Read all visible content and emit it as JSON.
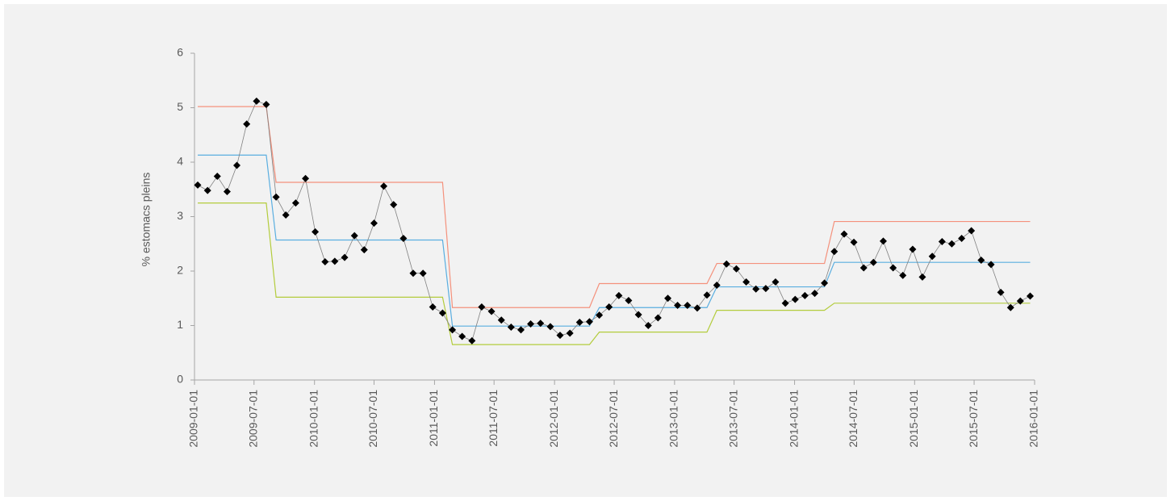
{
  "chart_data": {
    "type": "line",
    "y_label": "% estomacs pleins",
    "x": [
      2009.027,
      2009.109,
      2009.19,
      2009.272,
      2009.353,
      2009.435,
      2009.517,
      2009.598,
      2009.68,
      2009.761,
      2009.843,
      2009.925,
      2010.006,
      2010.088,
      2010.169,
      2010.251,
      2010.333,
      2010.414,
      2010.496,
      2010.577,
      2010.659,
      2010.741,
      2010.822,
      2010.904,
      2010.985,
      2011.067,
      2011.149,
      2011.23,
      2011.312,
      2011.393,
      2011.475,
      2011.557,
      2011.638,
      2011.72,
      2011.801,
      2011.883,
      2011.965,
      2012.046,
      2012.128,
      2012.209,
      2012.291,
      2012.373,
      2012.454,
      2012.536,
      2012.617,
      2012.699,
      2012.781,
      2012.862,
      2012.944,
      2013.025,
      2013.107,
      2013.189,
      2013.27,
      2013.352,
      2013.433,
      2013.515,
      2013.597,
      2013.678,
      2013.76,
      2013.841,
      2013.923,
      2014.005,
      2014.086,
      2014.168,
      2014.249,
      2014.331,
      2014.413,
      2014.494,
      2014.576,
      2014.657,
      2014.739,
      2014.821,
      2014.902,
      2014.984,
      2015.065,
      2015.147,
      2015.229,
      2015.31,
      2015.392,
      2015.473,
      2015.555,
      2015.637,
      2015.718,
      2015.8,
      2015.881,
      2015.963
    ],
    "series": [
      {
        "color": "#f4917c",
        "values": [
          5.02,
          5.02,
          5.02,
          5.02,
          5.02,
          5.02,
          5.02,
          5.02,
          3.63,
          3.63,
          3.63,
          3.63,
          3.63,
          3.63,
          3.63,
          3.63,
          3.63,
          3.63,
          3.63,
          3.63,
          3.63,
          3.63,
          3.63,
          3.63,
          3.63,
          3.63,
          1.33,
          1.33,
          1.33,
          1.33,
          1.33,
          1.33,
          1.33,
          1.33,
          1.33,
          1.33,
          1.33,
          1.33,
          1.33,
          1.33,
          1.33,
          1.77,
          1.77,
          1.77,
          1.77,
          1.77,
          1.77,
          1.77,
          1.77,
          1.77,
          1.77,
          1.77,
          1.77,
          2.14,
          2.14,
          2.14,
          2.14,
          2.14,
          2.14,
          2.14,
          2.14,
          2.14,
          2.14,
          2.14,
          2.14,
          2.91,
          2.91,
          2.91,
          2.91,
          2.91,
          2.91,
          2.91,
          2.91,
          2.91,
          2.91,
          2.91,
          2.91,
          2.91,
          2.91,
          2.91,
          2.91,
          2.91,
          2.91,
          2.91,
          2.91,
          2.91
        ]
      },
      {
        "color": "#5aaee0",
        "values": [
          4.13,
          4.13,
          4.13,
          4.13,
          4.13,
          4.13,
          4.13,
          4.13,
          2.57,
          2.57,
          2.57,
          2.57,
          2.57,
          2.57,
          2.57,
          2.57,
          2.57,
          2.57,
          2.57,
          2.57,
          2.57,
          2.57,
          2.57,
          2.57,
          2.57,
          2.57,
          0.99,
          0.99,
          0.99,
          0.99,
          0.99,
          0.99,
          0.99,
          0.99,
          0.99,
          0.99,
          0.99,
          0.99,
          0.99,
          0.99,
          0.99,
          1.33,
          1.33,
          1.33,
          1.33,
          1.33,
          1.33,
          1.33,
          1.33,
          1.33,
          1.33,
          1.33,
          1.33,
          1.71,
          1.71,
          1.71,
          1.71,
          1.71,
          1.71,
          1.71,
          1.71,
          1.71,
          1.71,
          1.71,
          1.71,
          2.16,
          2.16,
          2.16,
          2.16,
          2.16,
          2.16,
          2.16,
          2.16,
          2.16,
          2.16,
          2.16,
          2.16,
          2.16,
          2.16,
          2.16,
          2.16,
          2.16,
          2.16,
          2.16,
          2.16,
          2.16
        ]
      },
      {
        "color": "#b3cc3c",
        "values": [
          3.25,
          3.25,
          3.25,
          3.25,
          3.25,
          3.25,
          3.25,
          3.25,
          1.52,
          1.52,
          1.52,
          1.52,
          1.52,
          1.52,
          1.52,
          1.52,
          1.52,
          1.52,
          1.52,
          1.52,
          1.52,
          1.52,
          1.52,
          1.52,
          1.52,
          1.52,
          0.65,
          0.65,
          0.65,
          0.65,
          0.65,
          0.65,
          0.65,
          0.65,
          0.65,
          0.65,
          0.65,
          0.65,
          0.65,
          0.65,
          0.65,
          0.88,
          0.88,
          0.88,
          0.88,
          0.88,
          0.88,
          0.88,
          0.88,
          0.88,
          0.88,
          0.88,
          0.88,
          1.28,
          1.28,
          1.28,
          1.28,
          1.28,
          1.28,
          1.28,
          1.28,
          1.28,
          1.28,
          1.28,
          1.28,
          1.41,
          1.41,
          1.41,
          1.41,
          1.41,
          1.41,
          1.41,
          1.41,
          1.41,
          1.41,
          1.41,
          1.41,
          1.41,
          1.41,
          1.41,
          1.41,
          1.41,
          1.41,
          1.41,
          1.41,
          1.41
        ]
      },
      {
        "color": "#808080",
        "marker": "diamond",
        "marker_color": "#000000",
        "values": [
          3.58,
          3.48,
          3.74,
          3.46,
          3.94,
          4.7,
          5.12,
          5.06,
          3.36,
          3.03,
          3.25,
          3.7,
          2.72,
          2.17,
          2.18,
          2.25,
          2.65,
          2.39,
          2.88,
          3.56,
          3.22,
          2.6,
          1.96,
          1.96,
          1.34,
          1.23,
          0.92,
          0.8,
          0.72,
          1.34,
          1.26,
          1.1,
          0.97,
          0.92,
          1.03,
          1.04,
          0.98,
          0.82,
          0.86,
          1.06,
          1.07,
          1.19,
          1.34,
          1.55,
          1.46,
          1.2,
          1.0,
          1.14,
          1.5,
          1.37,
          1.37,
          1.32,
          1.56,
          1.74,
          2.13,
          2.04,
          1.8,
          1.67,
          1.68,
          1.8,
          1.41,
          1.48,
          1.55,
          1.59,
          1.78,
          2.36,
          2.68,
          2.53,
          2.06,
          2.16,
          2.55,
          2.06,
          1.92,
          2.4,
          1.89,
          2.27,
          2.54,
          2.5,
          2.6,
          2.74,
          2.2,
          2.12,
          1.61,
          1.33,
          1.45,
          1.54
        ]
      }
    ],
    "xlim": [
      2009,
      2016
    ],
    "xticks": [
      {
        "value": 2009,
        "label": "2009-01-01"
      },
      {
        "value": 2009.496,
        "label": "2009-07-01"
      },
      {
        "value": 2010,
        "label": "2010-01-01"
      },
      {
        "value": 2010.496,
        "label": "2010-07-01"
      },
      {
        "value": 2011,
        "label": "2011-01-01"
      },
      {
        "value": 2011.496,
        "label": "2011-07-01"
      },
      {
        "value": 2012,
        "label": "2012-01-01"
      },
      {
        "value": 2012.497,
        "label": "2012-07-01"
      },
      {
        "value": 2013,
        "label": "2013-01-01"
      },
      {
        "value": 2013.496,
        "label": "2013-07-01"
      },
      {
        "value": 2014,
        "label": "2014-01-01"
      },
      {
        "value": 2014.496,
        "label": "2014-07-01"
      },
      {
        "value": 2015,
        "label": "2015-01-01"
      },
      {
        "value": 2015.496,
        "label": "2015-07-01"
      },
      {
        "value": 2016,
        "label": "2016-01-01"
      }
    ],
    "ylim": [
      0,
      6
    ],
    "yticks": [
      0,
      1,
      2,
      3,
      4,
      5,
      6
    ],
    "grid": false
  }
}
